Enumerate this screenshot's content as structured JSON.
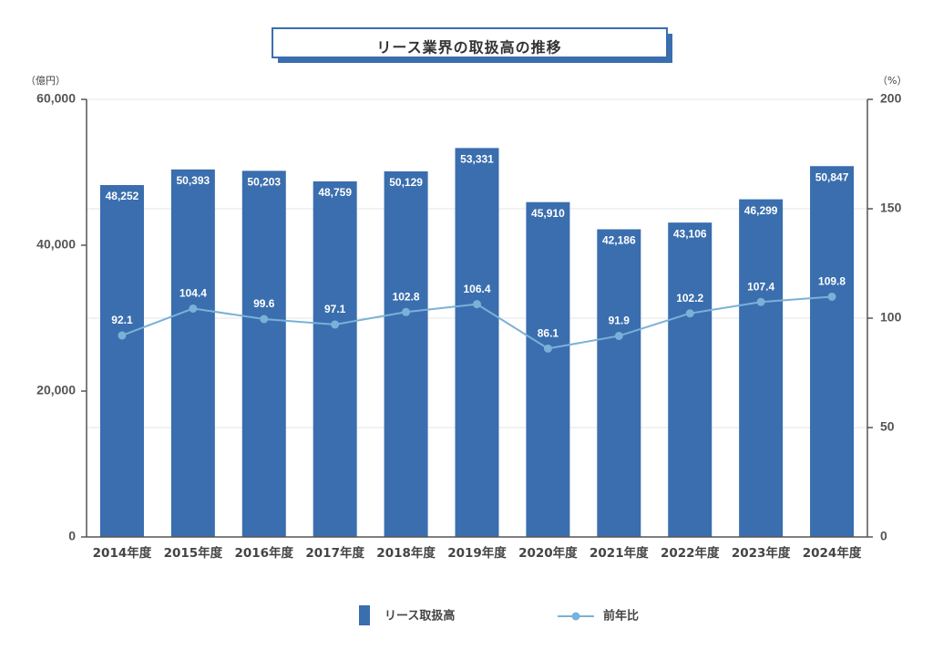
{
  "chart_data": {
    "type": "bar",
    "title": "リース業界の取扱高の推移",
    "y_left_unit": "（億円）",
    "y_right_unit": "（%）",
    "y_left_range": [
      0,
      60000
    ],
    "y_left_ticks": [
      "0",
      "20,000",
      "40,000",
      "60,000"
    ],
    "y_left_tick_values": [
      0,
      20000,
      40000,
      60000
    ],
    "y_right_range": [
      0,
      200
    ],
    "y_right_ticks": [
      "0",
      "50",
      "100",
      "150",
      "200"
    ],
    "y_right_tick_values": [
      0,
      50,
      100,
      150,
      200
    ],
    "categories": [
      "2014年度",
      "2015年度",
      "2016年度",
      "2017年度",
      "2018年度",
      "2019年度",
      "2020年度",
      "2021年度",
      "2022年度",
      "2023年度",
      "2024年度"
    ],
    "series": [
      {
        "name": "リース取扱高",
        "type": "bar",
        "axis": "left",
        "color": "#3a6eae",
        "values": [
          48252,
          50393,
          50203,
          48759,
          50129,
          53331,
          45910,
          42186,
          43106,
          46299,
          50847
        ],
        "labels": [
          "48,252",
          "50,393",
          "50,203",
          "48,759",
          "50,129",
          "53,331",
          "45,910",
          "42,186",
          "43,106",
          "46,299",
          "50,847"
        ]
      },
      {
        "name": "前年比",
        "type": "line",
        "axis": "right",
        "color": "#7ab1d8",
        "values": [
          92.1,
          104.4,
          99.6,
          97.1,
          102.8,
          106.4,
          86.1,
          91.9,
          102.2,
          107.4,
          109.8
        ],
        "labels": [
          "92.1",
          "104.4",
          "99.6",
          "97.1",
          "102.8",
          "106.4",
          "86.1",
          "91.9",
          "102.2",
          "107.4",
          "109.8"
        ]
      }
    ],
    "grid": true,
    "legend_position": "bottom"
  }
}
